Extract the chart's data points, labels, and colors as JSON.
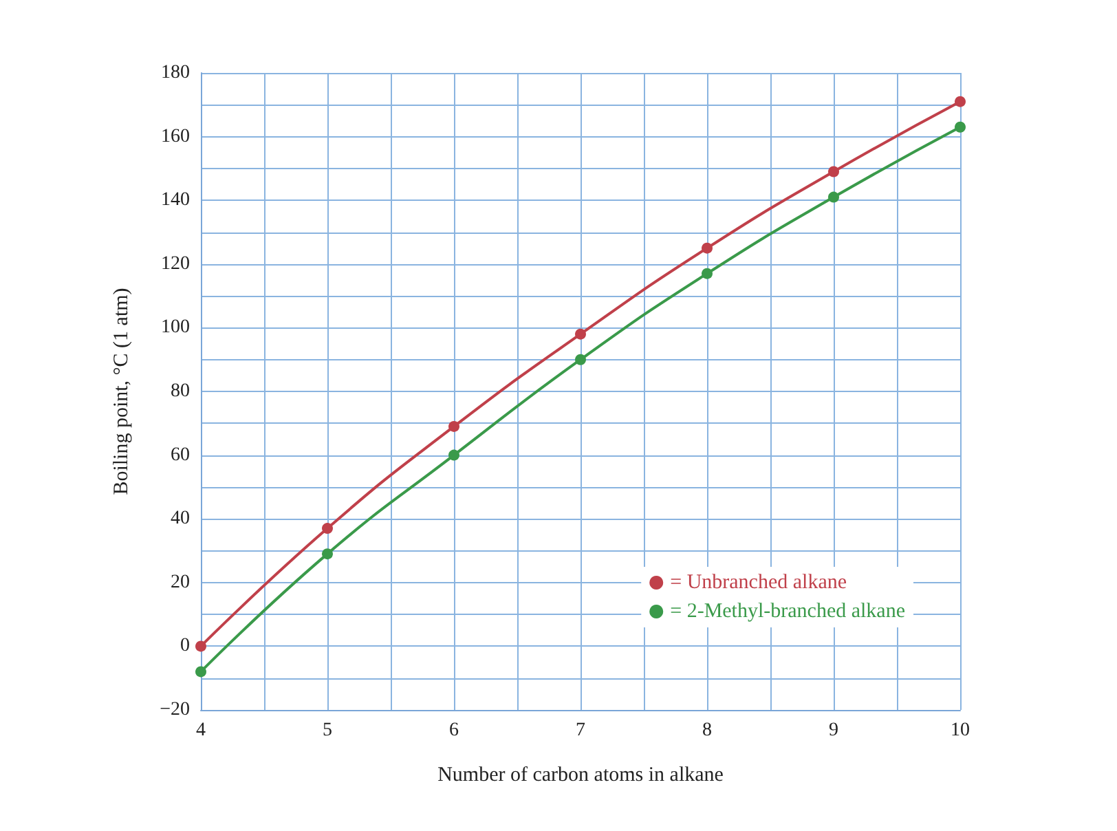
{
  "chart_data": {
    "type": "line",
    "xlabel": "Number of carbon atoms in alkane",
    "ylabel": "Boiling point, °C (1 atm)",
    "x": [
      4,
      5,
      6,
      7,
      8,
      9,
      10
    ],
    "series": [
      {
        "name": "= Unbranched alkane",
        "color": "#c0404a",
        "values": [
          0,
          37,
          69,
          98,
          125,
          149,
          171
        ]
      },
      {
        "name": "= 2-Methyl-branched alkane",
        "color": "#3a9a4a",
        "values": [
          -8,
          29,
          60,
          90,
          117,
          141,
          163
        ]
      }
    ],
    "xlim": [
      4,
      10
    ],
    "xticks": [
      4,
      {
        "value": 4.5,
        "label": null
      },
      5,
      {
        "value": 5.5,
        "label": null
      },
      6,
      {
        "value": 6.5,
        "label": null
      },
      7,
      {
        "value": 7.5,
        "label": null
      },
      8,
      {
        "value": 8.5,
        "label": null
      },
      9,
      {
        "value": 9.5,
        "label": null
      },
      10
    ],
    "ylim": [
      -20,
      180
    ],
    "yticks": [
      {
        "value": -20,
        "label": "−20"
      },
      {
        "value": -10,
        "label": null
      },
      0,
      {
        "value": 10,
        "label": null
      },
      20,
      {
        "value": 30,
        "label": null
      },
      40,
      {
        "value": 50,
        "label": null
      },
      60,
      {
        "value": 70,
        "label": null
      },
      80,
      {
        "value": 90,
        "label": null
      },
      100,
      {
        "value": 110,
        "label": null
      },
      120,
      {
        "value": 130,
        "label": null
      },
      140,
      {
        "value": 150,
        "label": null
      },
      160,
      {
        "value": 170,
        "label": null
      },
      180
    ],
    "grid": true,
    "legend": "bottom right",
    "marker": "circle",
    "line_style": "solid"
  }
}
